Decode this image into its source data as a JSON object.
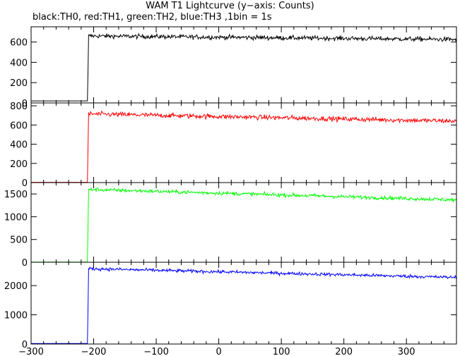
{
  "chart_data": {
    "type": "line",
    "title": "WAM T1 Lightcurve (y−axis: Counts)",
    "subtitle": "black:TH0, red:TH1, green:TH2, blue:TH3 ,1bin = 1s",
    "xlabel": "",
    "ylabel": "",
    "xlim": [
      -300,
      380
    ],
    "x_ticks": [
      -300,
      -200,
      -100,
      0,
      100,
      200,
      300
    ],
    "x_tick_labels": [
      "−300",
      "−200",
      "−100",
      "0",
      "100",
      "200",
      "300"
    ],
    "grid": false,
    "bin_seconds": 1,
    "panels": [
      {
        "name": "TH0",
        "color": "#000000",
        "ylim": [
          0,
          750
        ],
        "y_ticks": [
          0,
          200,
          400,
          600
        ],
        "profile": {
          "pre_level": 20,
          "step_x": -209,
          "step_mid": 330,
          "start_level": 660,
          "end_level": 625,
          "noise": 22
        }
      },
      {
        "name": "TH1",
        "color": "#ff0000",
        "ylim": [
          0,
          830
        ],
        "y_ticks": [
          0,
          200,
          400,
          600,
          800
        ],
        "profile": {
          "pre_level": 3,
          "step_x": -209,
          "step_mid": 380,
          "start_level": 715,
          "end_level": 640,
          "noise": 25
        }
      },
      {
        "name": "TH2",
        "color": "#00ff00",
        "ylim": [
          0,
          1750
        ],
        "y_ticks": [
          0,
          500,
          1000,
          1500
        ],
        "profile": {
          "pre_level": 3,
          "step_x": -209,
          "step_mid": 800,
          "start_level": 1600,
          "end_level": 1370,
          "noise": 40
        }
      },
      {
        "name": "TH3",
        "color": "#0000ff",
        "ylim": [
          0,
          2800
        ],
        "y_ticks": [
          0,
          1000,
          2000
        ],
        "profile": {
          "pre_level": 20,
          "step_x": -209,
          "step_mid": 1270,
          "start_level": 2580,
          "end_level": 2280,
          "noise": 55
        }
      }
    ]
  }
}
